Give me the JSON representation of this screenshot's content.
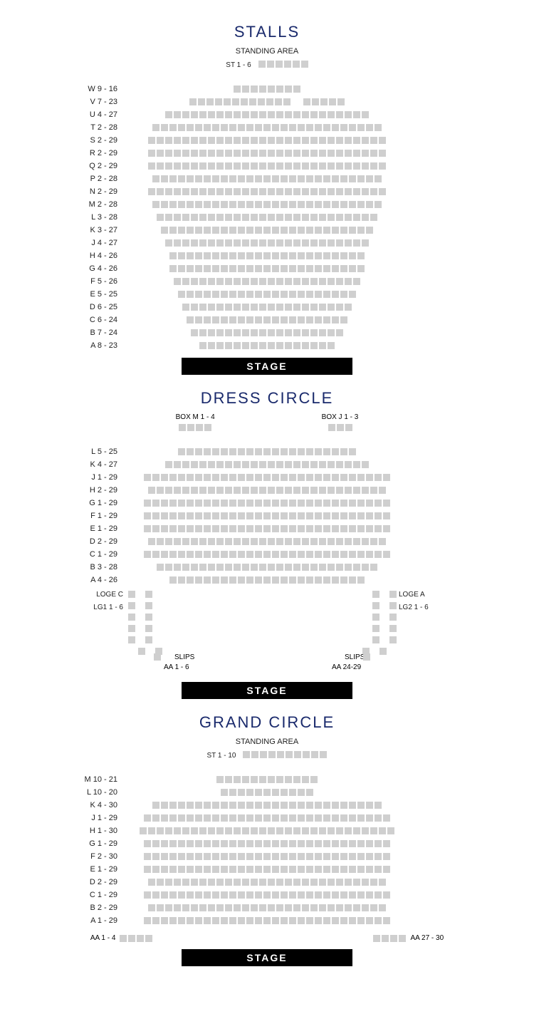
{
  "colors": {
    "title": "#1a2a6c",
    "seat": "#cfcfcf",
    "stage_bg": "#000000",
    "stage_text": "#ffffff",
    "text": "#222222"
  },
  "stage_label": "STAGE",
  "seat_size": 10,
  "seat_gap": 2,
  "stalls": {
    "title": "STALLS",
    "standing_label": "STANDING AREA",
    "standing_row_label": "ST 1 - 6",
    "standing_count": 6,
    "rows": [
      {
        "label": "W 9 - 16",
        "seats": 8,
        "gaps": []
      },
      {
        "label": "V 7 - 23",
        "seats": 17,
        "gaps": [
          12
        ]
      },
      {
        "label": "U 4 - 27",
        "seats": 24,
        "gaps": []
      },
      {
        "label": "T 2 - 28",
        "seats": 27,
        "gaps": []
      },
      {
        "label": "S 2 - 29",
        "seats": 28,
        "gaps": []
      },
      {
        "label": "R 2 - 29",
        "seats": 28,
        "gaps": []
      },
      {
        "label": "Q 2 - 29",
        "seats": 28,
        "gaps": []
      },
      {
        "label": "P 2 - 28",
        "seats": 27,
        "gaps": []
      },
      {
        "label": "N 2 - 29",
        "seats": 28,
        "gaps": []
      },
      {
        "label": "M 2 - 28",
        "seats": 27,
        "gaps": []
      },
      {
        "label": "L 3 - 28",
        "seats": 26,
        "gaps": []
      },
      {
        "label": "K 3 - 27",
        "seats": 25,
        "gaps": []
      },
      {
        "label": "J 4 - 27",
        "seats": 24,
        "gaps": []
      },
      {
        "label": "H 4 - 26",
        "seats": 23,
        "gaps": []
      },
      {
        "label": "G 4 - 26",
        "seats": 23,
        "gaps": []
      },
      {
        "label": "F 5 - 26",
        "seats": 22,
        "gaps": []
      },
      {
        "label": "E 5 - 25",
        "seats": 21,
        "gaps": []
      },
      {
        "label": "D 6 - 25",
        "seats": 20,
        "gaps": []
      },
      {
        "label": "C 6 - 24",
        "seats": 19,
        "gaps": []
      },
      {
        "label": "B 7 - 24",
        "seats": 18,
        "gaps": []
      },
      {
        "label": "A 8 - 23",
        "seats": 16,
        "gaps": []
      }
    ]
  },
  "dress_circle": {
    "title": "DRESS CIRCLE",
    "boxes": [
      {
        "label": "BOX M 1 - 4",
        "count": 4
      },
      {
        "label": "BOX J 1 - 3",
        "count": 3
      }
    ],
    "rows": [
      {
        "label": "L 5 - 25",
        "seats": 21
      },
      {
        "label": "K 4 - 27",
        "seats": 24
      },
      {
        "label": "J 1 - 29",
        "seats": 29
      },
      {
        "label": "H 2 - 29",
        "seats": 28
      },
      {
        "label": "G 1 - 29",
        "seats": 29
      },
      {
        "label": "F 1 - 29",
        "seats": 29
      },
      {
        "label": "E 1 - 29",
        "seats": 29
      },
      {
        "label": "D 2 - 29",
        "seats": 28
      },
      {
        "label": "C 1 - 29",
        "seats": 29
      },
      {
        "label": "B 3 - 28",
        "seats": 26
      },
      {
        "label": "A 4 - 26",
        "seats": 23
      }
    ],
    "loge_left_label": "LOGE C",
    "loge_right_label": "LOGE A",
    "lg_left_label": "LG1 1 - 6",
    "lg_right_label": "LG2 1 - 6",
    "loge_rows": 6,
    "slips_label": "SLIPS",
    "slips_left_label": "AA 1 - 6",
    "slips_right_label": "AA 24-29"
  },
  "grand_circle": {
    "title": "GRAND CIRCLE",
    "standing_label": "STANDING AREA",
    "standing_row_label": "ST 1 - 10",
    "standing_count": 10,
    "rows": [
      {
        "label": "M 10 - 21",
        "seats": 12
      },
      {
        "label": "L 10 - 20",
        "seats": 11
      },
      {
        "label": "K 4 - 30",
        "seats": 27
      },
      {
        "label": "J 1 - 29",
        "seats": 29
      },
      {
        "label": "H 1 - 30",
        "seats": 30
      },
      {
        "label": "G 1 - 29",
        "seats": 29
      },
      {
        "label": "F 2 - 30",
        "seats": 29
      },
      {
        "label": "E 1 - 29",
        "seats": 29
      },
      {
        "label": "D 2 - 29",
        "seats": 28
      },
      {
        "label": "C 1 - 29",
        "seats": 29
      },
      {
        "label": "B 2 - 29",
        "seats": 28
      },
      {
        "label": "A 1 - 29",
        "seats": 29
      }
    ],
    "aa_left_label": "AA 1 - 4",
    "aa_left_count": 4,
    "aa_right_label": "AA 27 - 30",
    "aa_right_count": 4,
    "aa_gap": 290
  }
}
